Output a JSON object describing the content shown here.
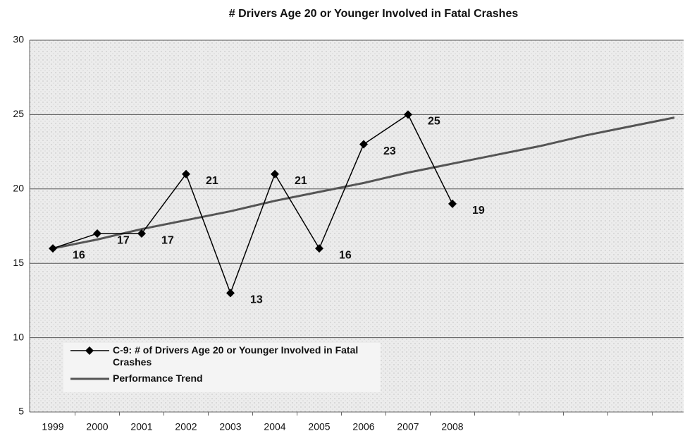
{
  "chart_data": {
    "type": "line",
    "title": "# Drivers Age 20 or Younger Involved in Fatal Crashes",
    "categories": [
      "1999",
      "2000",
      "2001",
      "2002",
      "2003",
      "2004",
      "2005",
      "2006",
      "2007",
      "2008",
      null,
      null,
      null,
      null,
      null
    ],
    "series": [
      {
        "name": "C-9: # of Drivers Age 20 or Younger Involved in Fatal Crashes",
        "color": "#000000",
        "values": [
          16,
          17,
          17,
          21,
          13,
          21,
          16,
          23,
          25,
          19,
          null,
          null,
          null,
          null,
          null
        ]
      },
      {
        "name": "Performance Trend",
        "color": "#555555",
        "values": [
          16,
          16.6,
          17.3,
          17.9,
          18.5,
          19.2,
          19.8,
          20.4,
          21.1,
          21.7,
          22.3,
          22.9,
          23.6,
          24.2,
          24.8
        ]
      }
    ],
    "ylim": [
      5,
      30
    ],
    "yticks": [
      5,
      10,
      15,
      20,
      25,
      30
    ],
    "grid": true,
    "legend": "lower left"
  }
}
